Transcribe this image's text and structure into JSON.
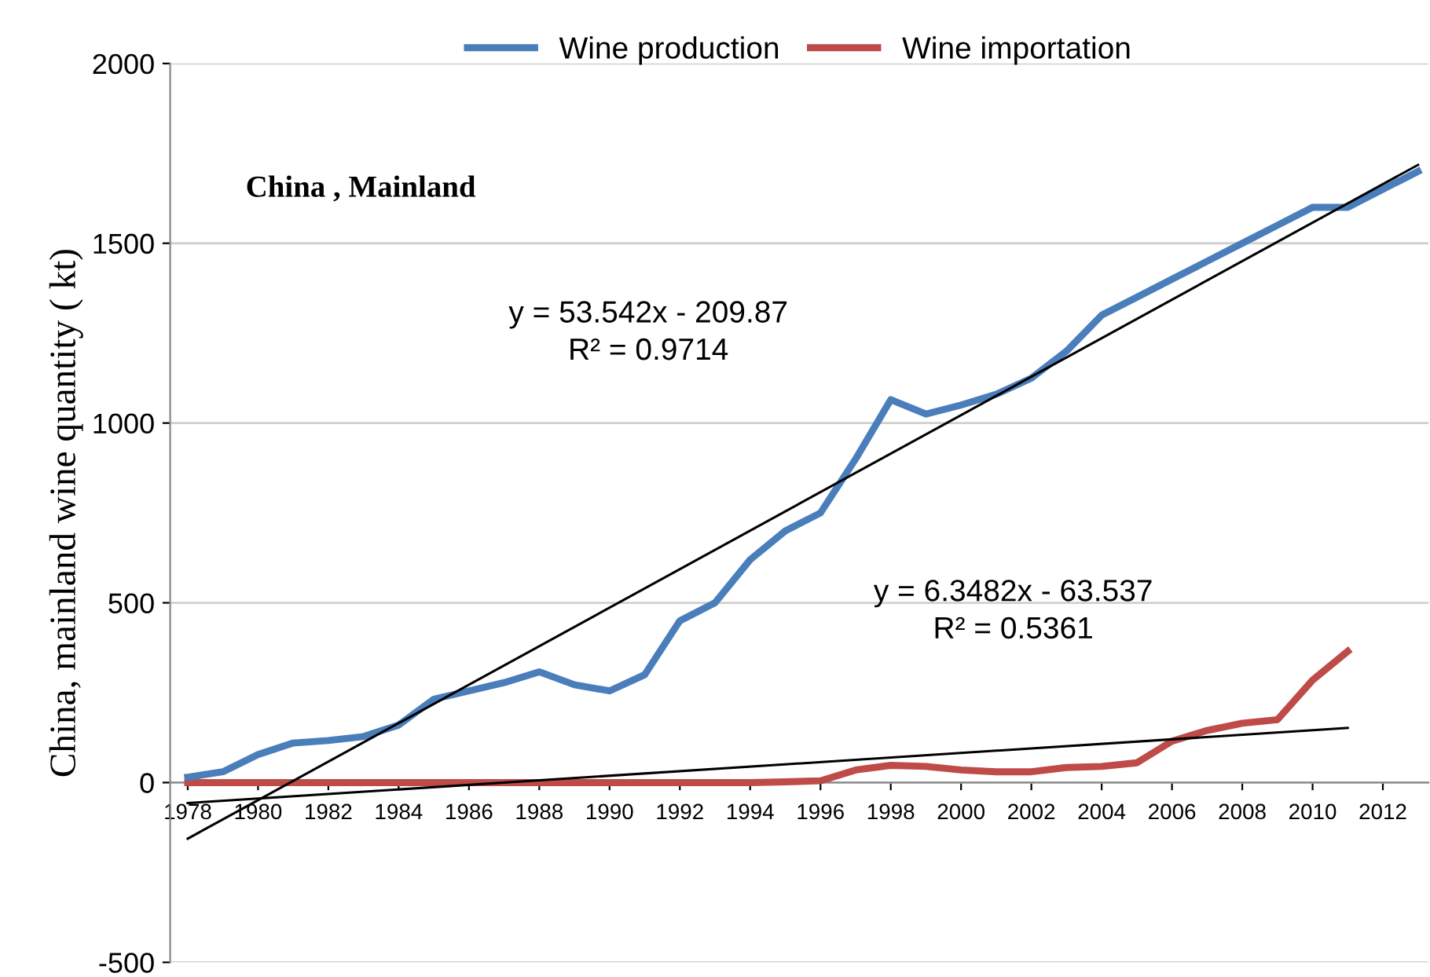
{
  "chart_data": {
    "type": "line",
    "ylabel": "China, mainland wine quantity ( kt)",
    "annotations": [
      "China , Mainland",
      "y = 53.542x - 209.87\nR² = 0.9714",
      "y = 6.3482x - 63.537\nR² = 0.5361"
    ],
    "x": [
      1978,
      1979,
      1980,
      1981,
      1982,
      1983,
      1984,
      1985,
      1986,
      1987,
      1988,
      1989,
      1990,
      1991,
      1992,
      1993,
      1994,
      1995,
      1996,
      1997,
      1998,
      1999,
      2000,
      2001,
      2002,
      2003,
      2004,
      2005,
      2006,
      2007,
      2008,
      2009,
      2010,
      2011,
      2012,
      2013
    ],
    "series": [
      {
        "name": "Wine production",
        "color": "#4a7ebb",
        "values": [
          15,
          30,
          78,
          110,
          117,
          128,
          160,
          232,
          255,
          278,
          308,
          272,
          255,
          300,
          450,
          500,
          620,
          700,
          750,
          900,
          1065,
          1025,
          1050,
          1080,
          1125,
          1200,
          1300,
          1350,
          1400,
          1450,
          1500,
          1550,
          1600,
          1600,
          1650,
          1700
        ]
      },
      {
        "name": "Wine importation",
        "color": "#be4b48",
        "values": [
          0,
          0,
          0,
          0,
          0,
          0,
          0,
          0,
          0,
          0,
          0,
          0,
          0,
          0,
          0,
          0,
          0,
          2,
          5,
          35,
          48,
          45,
          35,
          30,
          30,
          42,
          45,
          55,
          115,
          145,
          165,
          175,
          285,
          365,
          null,
          null
        ]
      },
      {
        "type": "line",
        "color": "#000000",
        "x": [
          1978,
          2013
        ],
        "values": [
          -156,
          1718
        ]
      },
      {
        "type": "line",
        "color": "#000000",
        "x": [
          1978,
          2011
        ],
        "values": [
          -57,
          152
        ]
      }
    ],
    "xlim": [
      1977.5,
      2013.3
    ],
    "xticks": [
      1978,
      1980,
      1982,
      1984,
      1986,
      1988,
      1990,
      1992,
      1994,
      1996,
      1998,
      2000,
      2002,
      2004,
      2006,
      2008,
      2010,
      2012
    ],
    "ylim": [
      -500,
      2000
    ],
    "yticks": [
      -500,
      0,
      500,
      1000,
      1500,
      2000
    ],
    "grid": "y",
    "legend": "top",
    "marker": "none",
    "line_style": "solid"
  }
}
